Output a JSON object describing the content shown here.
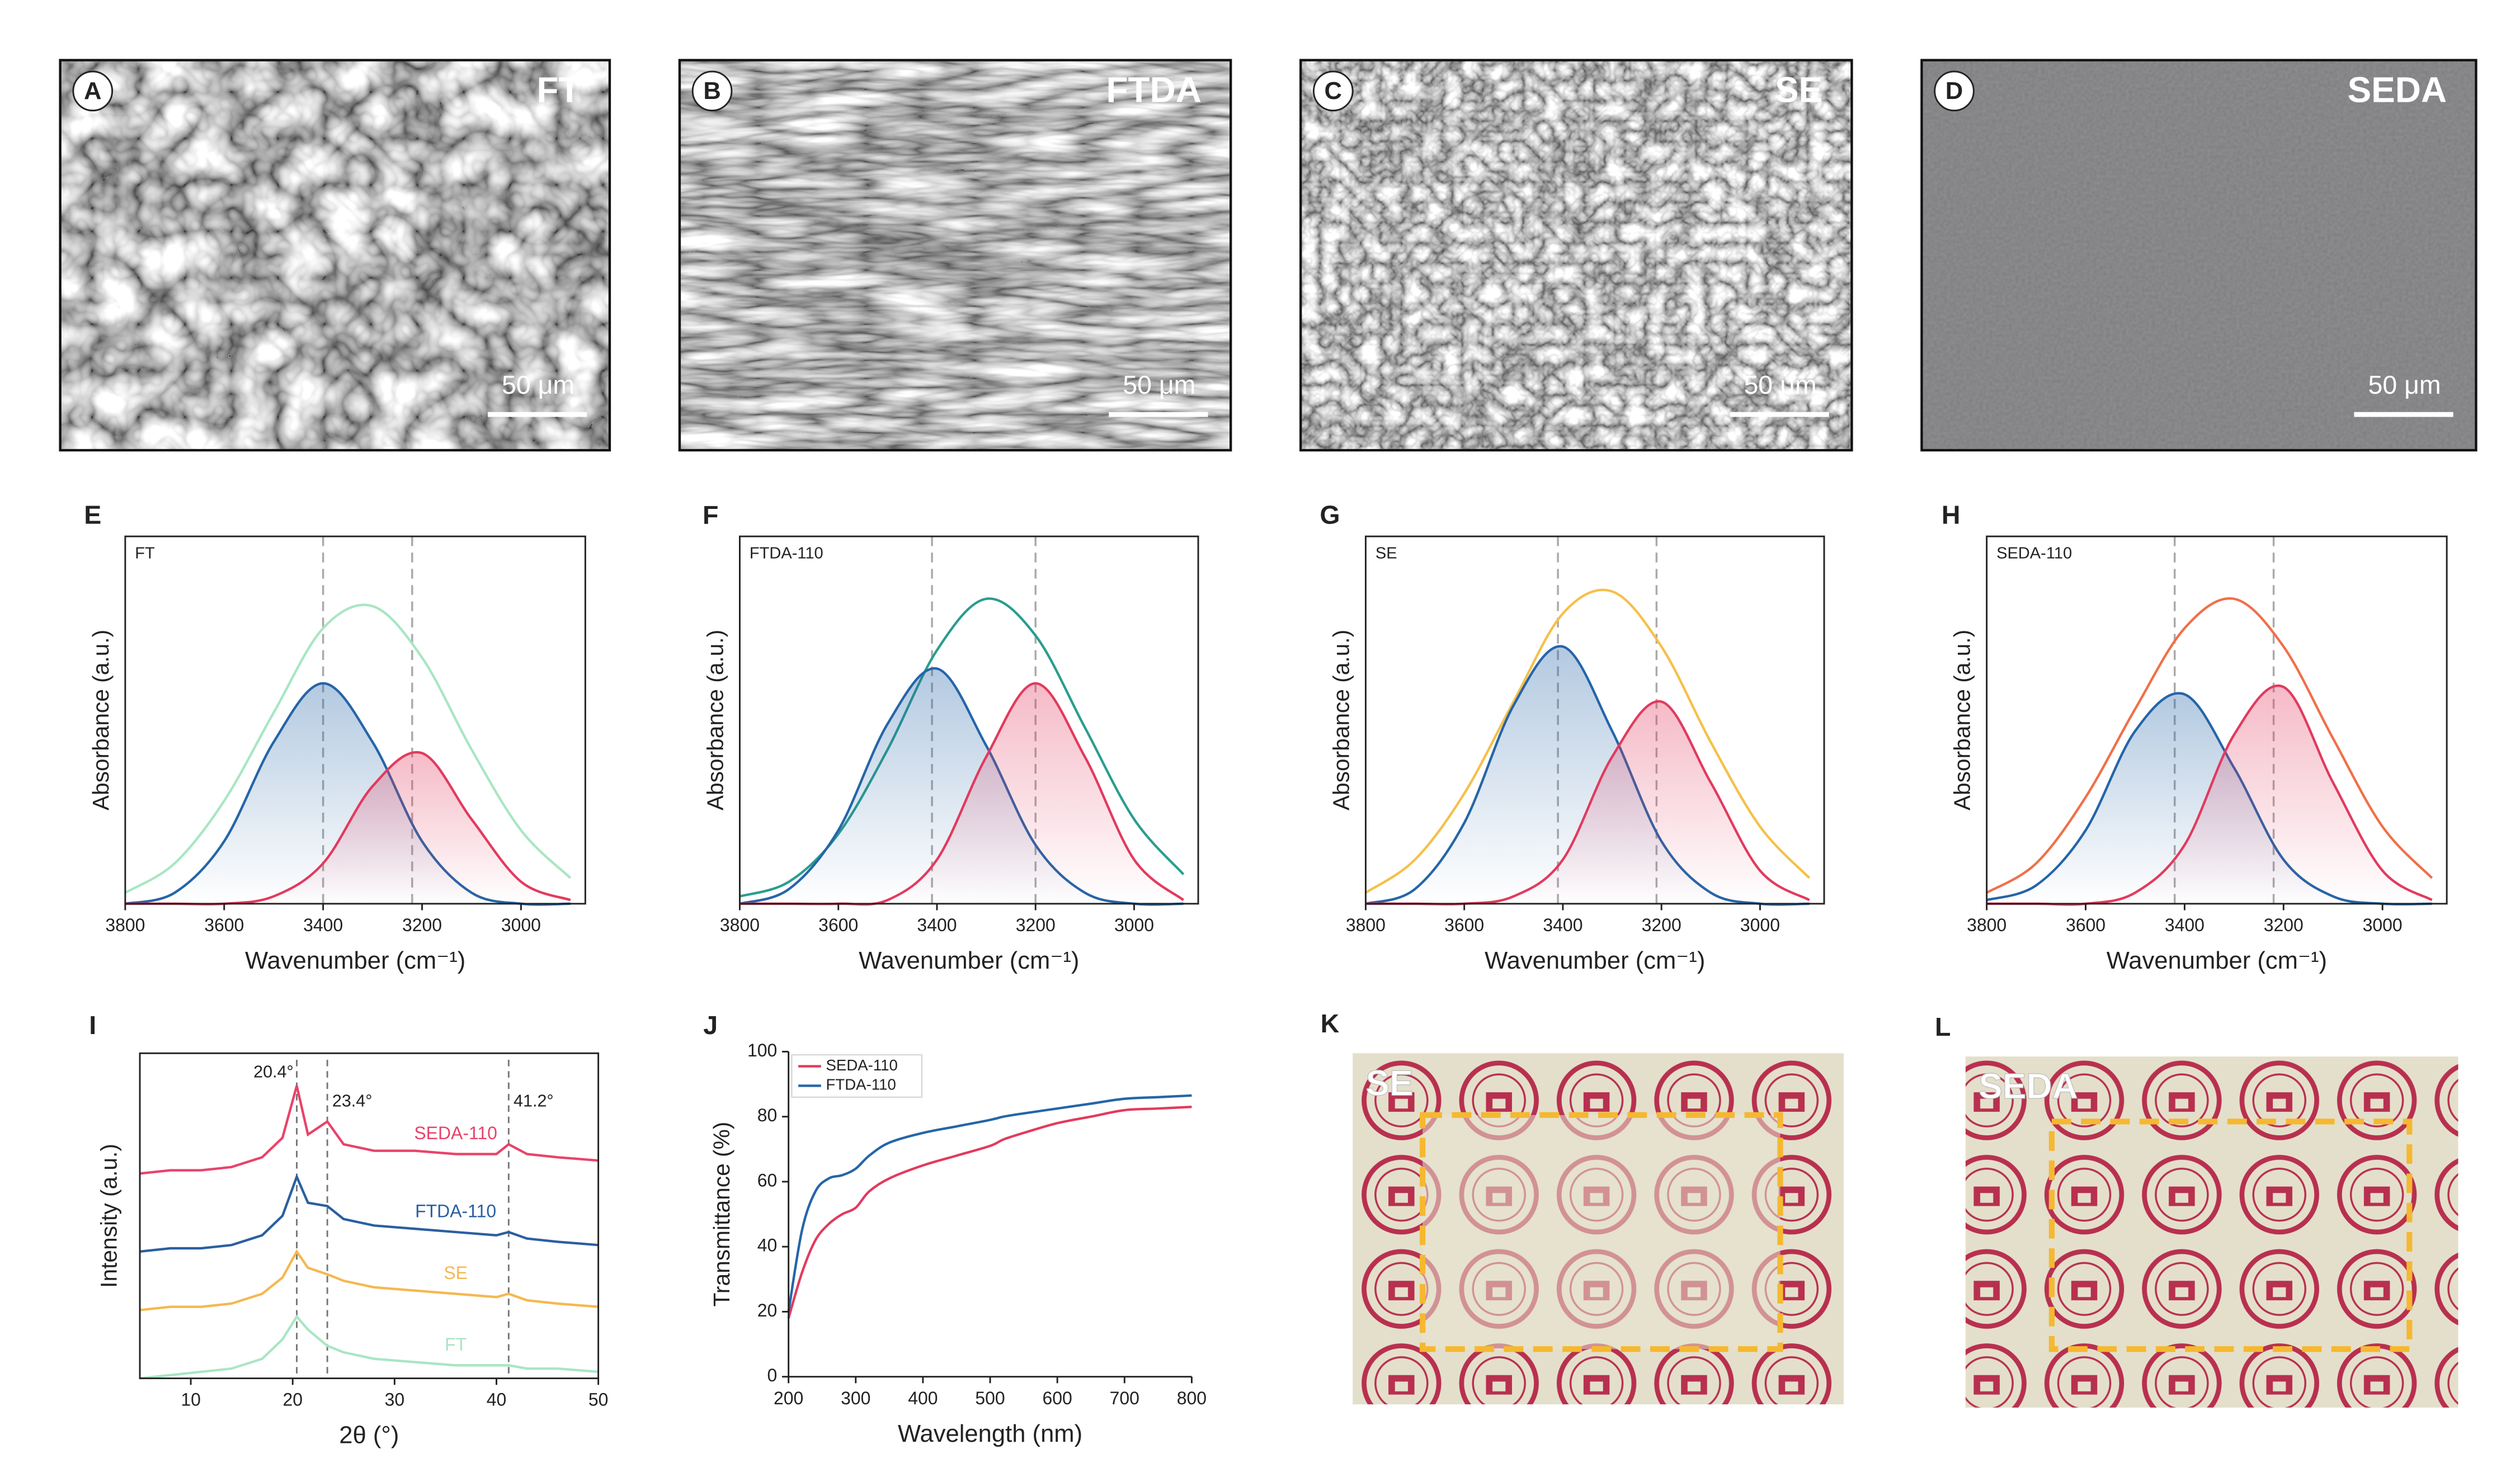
{
  "micrographs": [
    {
      "letter": "A",
      "label": "FT",
      "scale_bar": "50 μm"
    },
    {
      "letter": "B",
      "label": "FTDA",
      "scale_bar": "50 μm"
    },
    {
      "letter": "C",
      "label": "SE",
      "scale_bar": "50 μm"
    },
    {
      "letter": "D",
      "label": "SEDA",
      "scale_bar": "50 μm"
    }
  ],
  "photos": [
    {
      "letter": "K",
      "label": "SE"
    },
    {
      "letter": "L",
      "label": "SEDA"
    }
  ],
  "chart_data": [
    {
      "type": "line",
      "panel": "E",
      "title": "FT",
      "smooth": true,
      "frame": "box",
      "x_label": "Wavenumber (cm⁻¹)",
      "y_label": "Absorbance (a.u.)",
      "x": [
        3800,
        3700,
        3600,
        3500,
        3400,
        3300,
        3200,
        3100,
        3000,
        2900
      ],
      "xlim": [
        3800,
        2870
      ],
      "xticks": [
        3800,
        3600,
        3400,
        3200,
        3000
      ],
      "ylim": [
        0,
        1
      ],
      "reference_lines": [
        3400,
        3220
      ],
      "series": [
        {
          "color": "#a8e6c4",
          "values": [
            0.03,
            0.11,
            0.28,
            0.52,
            0.75,
            0.81,
            0.67,
            0.42,
            0.2,
            0.07
          ]
        },
        {
          "color": "#2565a8",
          "shaded": true,
          "values": [
            0.0,
            0.03,
            0.17,
            0.44,
            0.6,
            0.44,
            0.17,
            0.03,
            0.0,
            0.0
          ]
        },
        {
          "color": "#e23a5e",
          "shaded": true,
          "values": [
            0.0,
            0.0,
            0.0,
            0.02,
            0.11,
            0.32,
            0.41,
            0.23,
            0.06,
            0.01
          ]
        }
      ]
    },
    {
      "type": "line",
      "panel": "F",
      "title": "FTDA-110",
      "smooth": true,
      "frame": "box",
      "x_label": "Wavenumber (cm⁻¹)",
      "y_label": "Absorbance (a.u.)",
      "x": [
        3800,
        3700,
        3600,
        3500,
        3400,
        3300,
        3200,
        3100,
        3000,
        2900
      ],
      "xlim": [
        3800,
        2870
      ],
      "xticks": [
        3800,
        3600,
        3400,
        3200,
        3000
      ],
      "ylim": [
        0,
        1
      ],
      "reference_lines": [
        3410,
        3200
      ],
      "series": [
        {
          "color": "#2a9d8f",
          "values": [
            0.02,
            0.06,
            0.19,
            0.42,
            0.69,
            0.83,
            0.73,
            0.48,
            0.23,
            0.08
          ]
        },
        {
          "color": "#2565a8",
          "shaded": true,
          "values": [
            0.0,
            0.04,
            0.2,
            0.49,
            0.64,
            0.43,
            0.16,
            0.03,
            0.0,
            0.0
          ]
        },
        {
          "color": "#e23a5e",
          "shaded": true,
          "values": [
            0.0,
            0.0,
            0.0,
            0.01,
            0.12,
            0.4,
            0.6,
            0.4,
            0.12,
            0.01
          ]
        }
      ]
    },
    {
      "type": "line",
      "panel": "G",
      "title": "SE",
      "smooth": true,
      "frame": "box",
      "x_label": "Wavenumber (cm⁻¹)",
      "y_label": "Absorbance (a.u.)",
      "x": [
        3800,
        3700,
        3600,
        3500,
        3400,
        3300,
        3200,
        3100,
        3000,
        2900
      ],
      "xlim": [
        3800,
        2870
      ],
      "xticks": [
        3800,
        3600,
        3400,
        3200,
        3000
      ],
      "ylim": [
        0,
        1
      ],
      "reference_lines": [
        3410,
        3210
      ],
      "series": [
        {
          "color": "#f5c04a",
          "values": [
            0.03,
            0.12,
            0.3,
            0.55,
            0.79,
            0.85,
            0.7,
            0.44,
            0.21,
            0.07
          ]
        },
        {
          "color": "#2565a8",
          "shaded": true,
          "values": [
            0.0,
            0.04,
            0.22,
            0.54,
            0.7,
            0.47,
            0.17,
            0.03,
            0.0,
            0.0
          ]
        },
        {
          "color": "#e23a5e",
          "shaded": true,
          "values": [
            0.0,
            0.0,
            0.0,
            0.02,
            0.12,
            0.4,
            0.55,
            0.33,
            0.09,
            0.01
          ]
        }
      ]
    },
    {
      "type": "line",
      "panel": "H",
      "title": "SEDA-110",
      "smooth": true,
      "frame": "box",
      "x_label": "Wavenumber (cm⁻¹)",
      "y_label": "Absorbance (a.u.)",
      "x": [
        3800,
        3700,
        3600,
        3500,
        3400,
        3300,
        3200,
        3100,
        3000,
        2900
      ],
      "xlim": [
        3800,
        2870
      ],
      "xticks": [
        3800,
        3600,
        3400,
        3200,
        3000
      ],
      "ylim": [
        0,
        1
      ],
      "reference_lines": [
        3420,
        3220
      ],
      "series": [
        {
          "color": "#f07048",
          "values": [
            0.03,
            0.11,
            0.29,
            0.53,
            0.75,
            0.83,
            0.7,
            0.45,
            0.21,
            0.07
          ]
        },
        {
          "color": "#2565a8",
          "shaded": true,
          "values": [
            0.01,
            0.05,
            0.2,
            0.47,
            0.57,
            0.37,
            0.12,
            0.02,
            0.0,
            0.0
          ]
        },
        {
          "color": "#e23a5e",
          "shaded": true,
          "values": [
            0.0,
            0.0,
            0.0,
            0.03,
            0.16,
            0.46,
            0.59,
            0.33,
            0.09,
            0.01
          ]
        }
      ]
    },
    {
      "type": "line",
      "panel": "I",
      "smooth": false,
      "frame": "box",
      "legend": "inline",
      "x_label": "2θ (°)",
      "y_label": "Intensity (a.u.)",
      "x": [
        5,
        8,
        11,
        14,
        17,
        19,
        20.4,
        21.5,
        23.4,
        25,
        28,
        32,
        36,
        40,
        41.2,
        43,
        46,
        50
      ],
      "xlim": [
        5,
        50
      ],
      "xticks": [
        10,
        20,
        30,
        40,
        50
      ],
      "ylim": [
        0,
        1
      ],
      "peaks": [
        {
          "value": 20.4,
          "label": "20.4°"
        },
        {
          "value": 23.4,
          "label": "23.4°"
        },
        {
          "value": 41.2,
          "label": "41.2°"
        }
      ],
      "series": [
        {
          "name": "SEDA-110",
          "color": "#e8436a",
          "values": [
            0.63,
            0.64,
            0.64,
            0.65,
            0.68,
            0.74,
            0.9,
            0.75,
            0.79,
            0.72,
            0.7,
            0.7,
            0.69,
            0.69,
            0.72,
            0.69,
            0.68,
            0.67
          ]
        },
        {
          "name": "FTDA-110",
          "color": "#2a5fa0",
          "values": [
            0.39,
            0.4,
            0.4,
            0.41,
            0.44,
            0.5,
            0.62,
            0.54,
            0.53,
            0.49,
            0.47,
            0.46,
            0.45,
            0.44,
            0.45,
            0.43,
            0.42,
            0.41
          ]
        },
        {
          "name": "SE",
          "color": "#f5b851",
          "values": [
            0.21,
            0.22,
            0.22,
            0.23,
            0.26,
            0.31,
            0.39,
            0.34,
            0.32,
            0.3,
            0.28,
            0.27,
            0.26,
            0.25,
            0.26,
            0.24,
            0.23,
            0.22
          ]
        },
        {
          "name": "FT",
          "color": "#a8e6c4",
          "values": [
            0.0,
            0.01,
            0.02,
            0.03,
            0.06,
            0.12,
            0.19,
            0.15,
            0.1,
            0.08,
            0.06,
            0.05,
            0.04,
            0.04,
            0.04,
            0.03,
            0.03,
            0.02
          ]
        }
      ]
    },
    {
      "type": "line",
      "panel": "J",
      "smooth": true,
      "frame": "axes",
      "legend": "upper left",
      "x_label": "Wavelength (nm)",
      "y_label": "Transmittance (%)",
      "x": [
        200,
        220,
        240,
        260,
        280,
        300,
        320,
        350,
        400,
        450,
        500,
        520,
        550,
        600,
        650,
        700,
        750,
        800
      ],
      "xlim": [
        200,
        800
      ],
      "xticks": [
        200,
        300,
        400,
        500,
        600,
        700,
        800
      ],
      "ylim": [
        0,
        100
      ],
      "yticks": [
        0,
        20,
        40,
        60,
        80,
        100
      ],
      "series": [
        {
          "name": "SEDA-110",
          "color": "#e23a5e",
          "values": [
            18,
            32,
            42,
            47,
            50,
            52,
            57,
            61,
            65,
            68,
            71,
            73,
            75,
            78,
            80,
            82,
            82.5,
            83
          ]
        },
        {
          "name": "FTDA-110",
          "color": "#2565a8",
          "values": [
            20,
            45,
            57,
            61,
            62,
            64,
            68,
            72,
            75,
            77,
            79,
            80,
            81,
            82.5,
            84,
            85.5,
            86,
            86.5
          ]
        }
      ]
    }
  ]
}
